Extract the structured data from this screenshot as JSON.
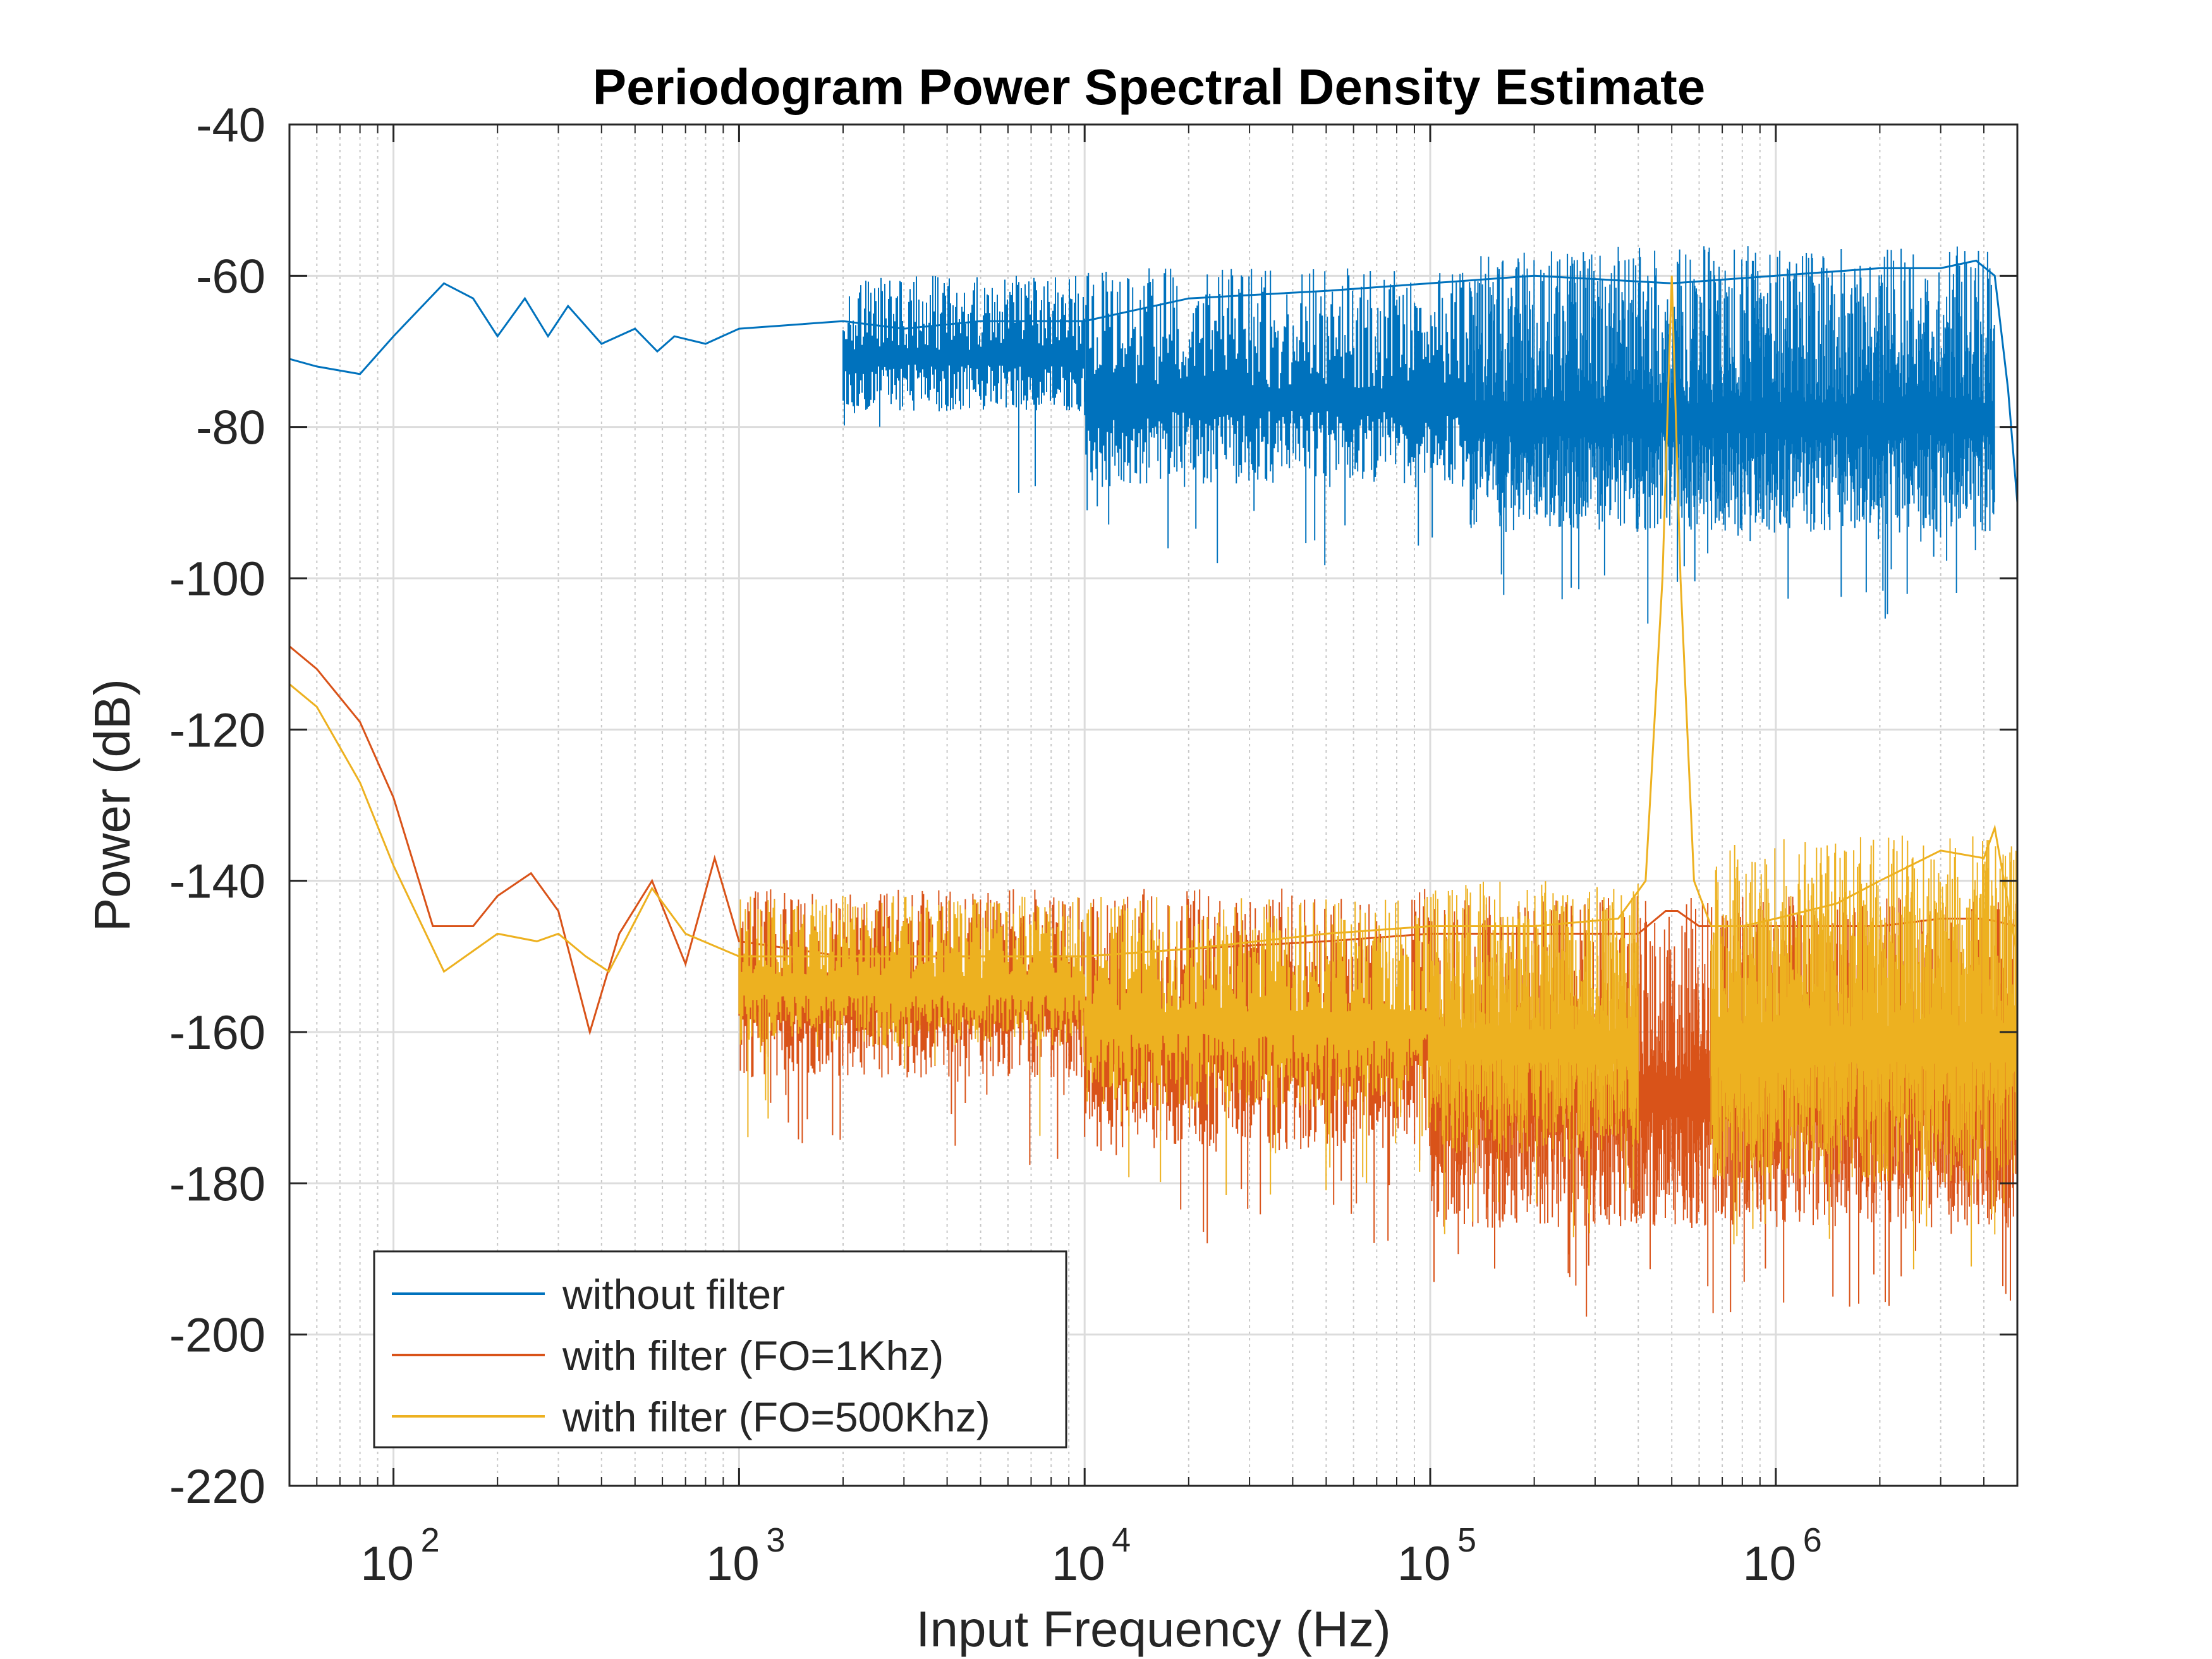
{
  "chart_data": {
    "type": "line",
    "title": "Periodogram Power Spectral Density Estimate",
    "xlabel": "Input Frequency (Hz)",
    "ylabel": "Power (dB)",
    "xscale": "log",
    "xlim": [
      50,
      5000000
    ],
    "ylim": [
      -220,
      -40
    ],
    "grid": true,
    "minor_grid": true,
    "legend_position": "bottom-left",
    "y_ticks": [
      -40,
      -60,
      -80,
      -100,
      -120,
      -140,
      -160,
      -180,
      -200,
      -220
    ],
    "y_tick_labels": [
      "-40",
      "-60",
      "-80",
      "-100",
      "-120",
      "-140",
      "-160",
      "-180",
      "-200",
      "-220"
    ],
    "x_ticks": [
      100,
      1000,
      10000,
      100000,
      1000000
    ],
    "x_tick_labels": [
      {
        "base": "10",
        "exp": "2"
      },
      {
        "base": "10",
        "exp": "3"
      },
      {
        "base": "10",
        "exp": "4"
      },
      {
        "base": "10",
        "exp": "5"
      },
      {
        "base": "10",
        "exp": "6"
      }
    ],
    "series": [
      {
        "name": "without filter",
        "color": "#0072BD",
        "x": [
          50,
          60,
          80,
          100,
          140,
          170,
          200,
          240,
          280,
          320,
          400,
          500,
          580,
          650,
          800,
          1000,
          2000,
          3000,
          5000,
          10000,
          20000,
          50000,
          100000,
          200000,
          500000,
          1000000,
          2000000,
          3000000,
          3800000,
          4300000,
          4700000,
          5000000
        ],
        "y": [
          -71,
          -72,
          -73,
          -68,
          -61,
          -63,
          -68,
          -63,
          -68,
          -64,
          -69,
          -67,
          -70,
          -68,
          -69,
          -67,
          -66,
          -67,
          -66,
          -66,
          -63,
          -62,
          -61,
          -60,
          -61,
          -60,
          -59,
          -59,
          -58,
          -60,
          -75,
          -90
        ],
        "noise": [
          {
            "x_start": 2000,
            "x_end": 10000,
            "low": -78,
            "high": -60
          },
          {
            "x_start": 10000,
            "x_end": 130000,
            "low": -88,
            "high": -59
          },
          {
            "x_start": 130000,
            "x_end": 4300000,
            "low": -94,
            "high": -56
          }
        ]
      },
      {
        "name": "with filter (FO=1Khz)",
        "color": "#D95319",
        "x": [
          50,
          60,
          80,
          100,
          130,
          170,
          200,
          250,
          300,
          370,
          450,
          560,
          700,
          850,
          1000,
          2000,
          5000,
          10000,
          20000,
          50000,
          100000,
          200000,
          400000,
          480000,
          520000,
          600000,
          1000000,
          2000000,
          3000000,
          4000000,
          5000000
        ],
        "y": [
          -109,
          -112,
          -119,
          -129,
          -146,
          -146,
          -142,
          -139,
          -144,
          -160,
          -147,
          -140,
          -151,
          -137,
          -148,
          -150,
          -150,
          -150,
          -149,
          -148,
          -147,
          -147,
          -147,
          -144,
          -144,
          -146,
          -146,
          -146,
          -145,
          -145,
          -146
        ],
        "noise": [
          {
            "x_start": 1000,
            "x_end": 10000,
            "low": -166,
            "high": -141
          },
          {
            "x_start": 10000,
            "x_end": 100000,
            "low": -176,
            "high": -141
          },
          {
            "x_start": 100000,
            "x_end": 5000000,
            "low": -186,
            "high": -142
          }
        ]
      },
      {
        "name": "with filter (FO=500Khz)",
        "color": "#EDB120",
        "x": [
          50,
          60,
          80,
          100,
          140,
          200,
          260,
          300,
          360,
          420,
          560,
          700,
          1000,
          2000,
          5000,
          10000,
          20000,
          50000,
          100000,
          200000,
          350000,
          420000,
          470000,
          500000,
          530000,
          580000,
          650000,
          800000,
          1000000,
          1500000,
          2000000,
          3000000,
          4000000,
          4300000,
          5000000
        ],
        "y": [
          -114,
          -117,
          -127,
          -138,
          -152,
          -147,
          -148,
          -147,
          -150,
          -152,
          -141,
          -147,
          -150,
          -150,
          -150,
          -150,
          -149,
          -147,
          -146,
          -146,
          -145,
          -140,
          -100,
          -60,
          -100,
          -140,
          -146,
          -146,
          -145,
          -143,
          -140,
          -136,
          -137,
          -133,
          -150
        ],
        "noise": [
          {
            "x_start": 1000,
            "x_end": 10000,
            "low": -162,
            "high": -142
          },
          {
            "x_start": 10000,
            "x_end": 100000,
            "low": -170,
            "high": -142
          },
          {
            "x_start": 100000,
            "x_end": 400000,
            "low": -176,
            "high": -140
          },
          {
            "x_start": 650000,
            "x_end": 5000000,
            "low": -180,
            "high": -134
          }
        ]
      }
    ]
  }
}
